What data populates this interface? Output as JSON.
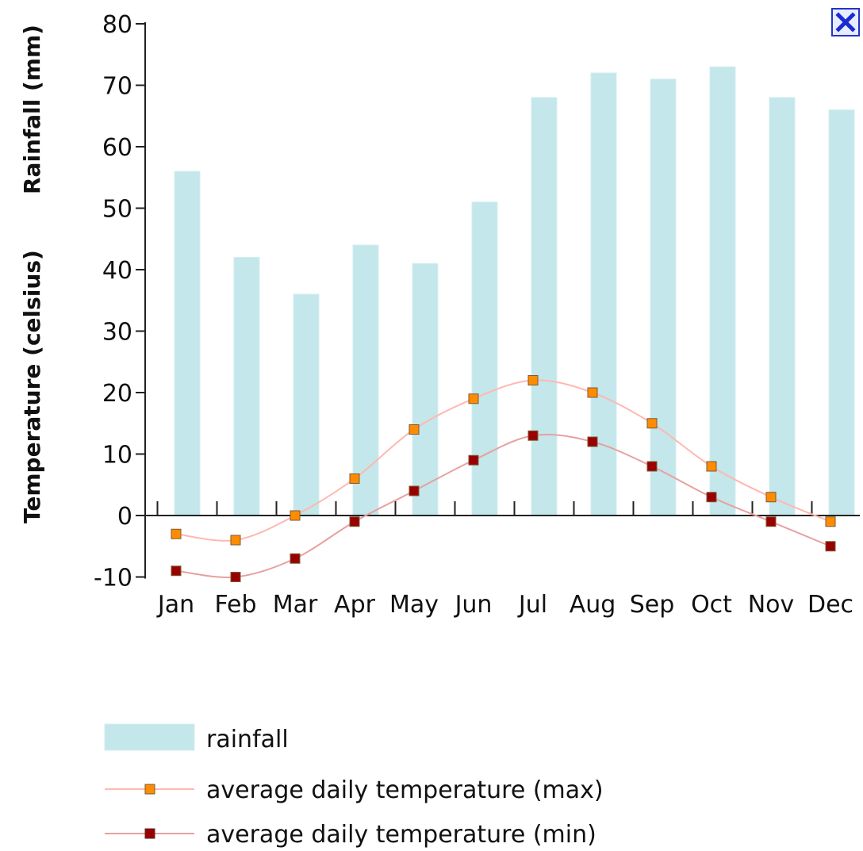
{
  "close_icon": "close-icon",
  "chart_data": {
    "type": "bar",
    "categories": [
      "Jan",
      "Feb",
      "Mar",
      "Apr",
      "May",
      "Jun",
      "Jul",
      "Aug",
      "Sep",
      "Oct",
      "Nov",
      "Dec"
    ],
    "ylabel_rain": "Rainfall (mm)",
    "ylabel_temp": "Temperature (celsius)",
    "ylim": [
      -10,
      80
    ],
    "yticks": [
      -10,
      0,
      10,
      20,
      30,
      40,
      50,
      60,
      70,
      80
    ],
    "series": [
      {
        "name": "rainfall",
        "kind": "bar",
        "color": "#c3e7ea",
        "values": [
          56,
          42,
          36,
          44,
          41,
          51,
          68,
          72,
          71,
          73,
          68,
          66
        ]
      },
      {
        "name": "average daily temperature (max)",
        "kind": "line",
        "color": "#ffb8b0",
        "marker": "#ff8c00",
        "values": [
          -3,
          -4,
          0,
          6,
          14,
          19,
          22,
          20,
          15,
          8,
          3,
          -1
        ]
      },
      {
        "name": "average daily temperature (min)",
        "kind": "line",
        "color": "#e8a0a0",
        "marker": "#990000",
        "values": [
          -9,
          -10,
          -7,
          -1,
          4,
          9,
          13,
          12,
          8,
          3,
          -1,
          -5
        ]
      }
    ],
    "legend_position": "bottom-left",
    "grid": false
  }
}
